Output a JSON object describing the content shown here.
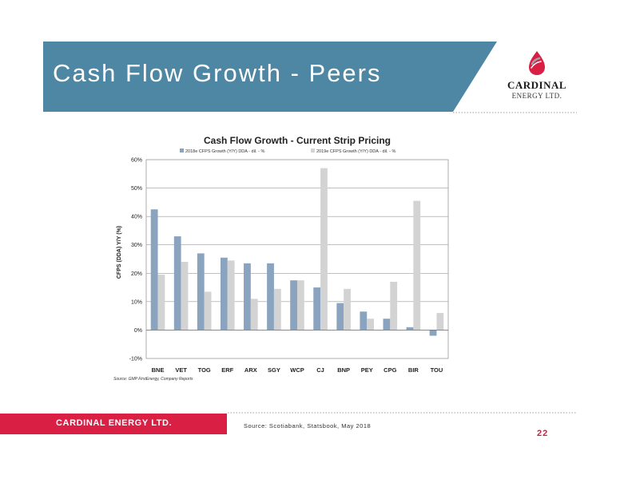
{
  "slide": {
    "title": "Cash Flow Growth - Peers",
    "logo_name": "CARDINAL",
    "logo_sub": "ENERGY LTD.",
    "footer_company": "CARDINAL ENERGY LTD.",
    "footer_source": "Source: Scotiabank, Statsbook, May 2018",
    "page_number": "22",
    "colors": {
      "banner": "#4e87a3",
      "accent": "#d91f43",
      "dots": "#9e9e9e"
    }
  },
  "chart_data": {
    "type": "bar",
    "title": "Cash Flow Growth - Current Strip Pricing",
    "ylabel": "CFPS (DDA) Y/Y (%)",
    "xlabel": "",
    "source_note": "Source: GMP FirstEnergy, Company Reports",
    "categories": [
      "BNE",
      "VET",
      "TOG",
      "ERF",
      "ARX",
      "SGY",
      "WCP",
      "CJ",
      "BNP",
      "PEY",
      "CPG",
      "BIR",
      "TOU"
    ],
    "ylim": [
      -10,
      60
    ],
    "yticks": [
      -10,
      0,
      10,
      20,
      30,
      40,
      50,
      60
    ],
    "ytick_labels": [
      "-10%",
      "0%",
      "10%",
      "20%",
      "30%",
      "40%",
      "50%",
      "60%"
    ],
    "grid": true,
    "legend_position": "top",
    "series": [
      {
        "name": "2018e CFPS Growth (Y/Y) DDA - dil. - %",
        "color": "#8aa3bf",
        "values": [
          42.5,
          33,
          27,
          25.5,
          23.5,
          23.5,
          17.5,
          15,
          9.5,
          6.5,
          4,
          1,
          -2
        ]
      },
      {
        "name": "2019e CFPS Growth (Y/Y) DDA - dil. - %",
        "color": "#d3d3d3",
        "values": [
          19.5,
          24,
          13.5,
          24.5,
          11,
          14.5,
          17.5,
          57,
          14.5,
          4,
          17,
          45.5,
          6
        ]
      }
    ]
  }
}
